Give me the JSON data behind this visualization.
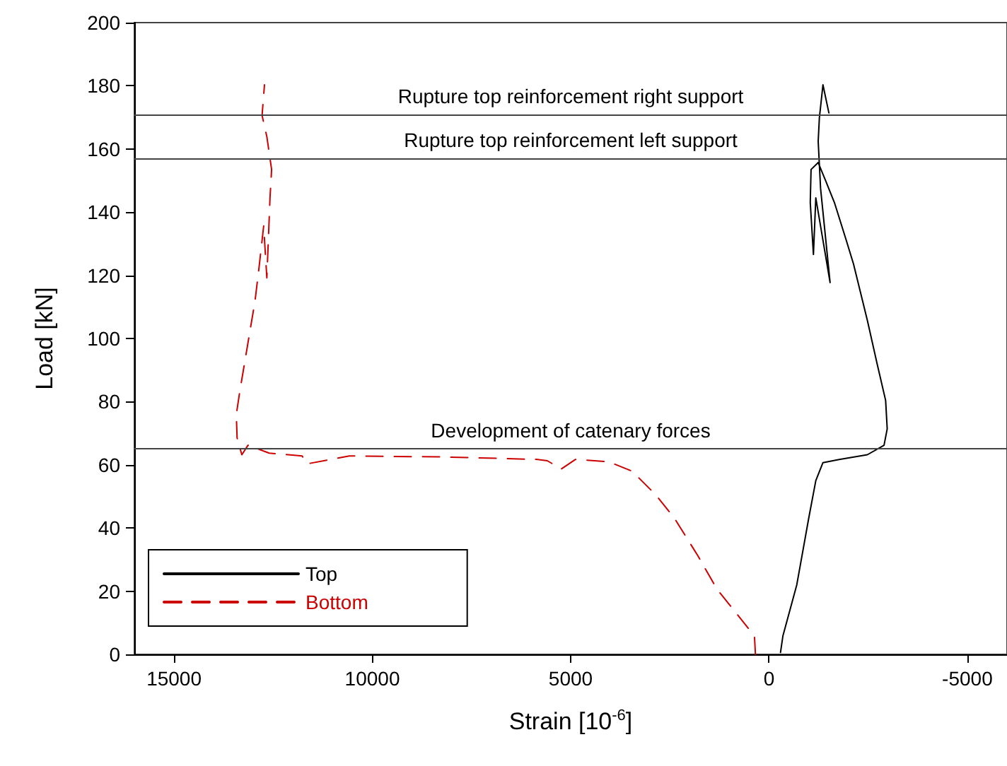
{
  "chart_data": {
    "type": "line",
    "xlabel": "Strain [10$^{-6}$]",
    "ylabel": "Load [kN]",
    "xlim": [
      16000,
      -6000
    ],
    "xticks": [
      15000,
      10000,
      5000,
      0,
      -5000
    ],
    "ylim": [
      0,
      200
    ],
    "yticks": [
      0,
      20,
      40,
      60,
      80,
      100,
      120,
      140,
      160,
      180,
      200
    ],
    "grid": false,
    "legend": "bottom left",
    "marker": "none",
    "series": [
      {
        "name": "Top",
        "color": "#000000",
        "line_style": "solid",
        "x": [
          -290,
          -350,
          -700,
          -1000,
          -1180,
          -1360,
          -1770,
          -2480,
          -2900,
          -2980,
          -2940,
          -2720,
          -2480,
          -2130,
          -1950,
          -1650,
          -1410,
          -1240,
          -1060,
          -1040,
          -1120,
          -1180,
          -1540,
          -1300,
          -1240,
          -1270,
          -1360,
          -1510
        ],
        "values": [
          0.6,
          5.8,
          22,
          43,
          55,
          60.7,
          61.7,
          63.2,
          66.2,
          71.4,
          80.4,
          92.3,
          105.7,
          123.6,
          131,
          143,
          150.5,
          155.7,
          153.5,
          143,
          126.6,
          144.5,
          117.7,
          147.5,
          162.4,
          169.9,
          180.3,
          171.4
        ]
      },
      {
        "name": "Bottom",
        "color": "#cc0000",
        "line_style": "dashed",
        "x": [
          342,
          367,
          841,
          1315,
          1793,
          2384,
          2862,
          3453,
          4048,
          4879,
          5235,
          5590,
          5830,
          8207,
          10580,
          11650,
          11770,
          12600,
          13136,
          13290,
          13410,
          13430,
          13340,
          13200,
          13080,
          12960,
          12860,
          12740,
          12660,
          12580,
          12540,
          12660,
          12780,
          12720
        ],
        "values": [
          0,
          5.8,
          13.3,
          20.7,
          31.2,
          43.1,
          50.6,
          58,
          61,
          61.7,
          58.7,
          61.3,
          61.7,
          62.5,
          62.8,
          60.3,
          62.8,
          63.7,
          66.2,
          63.2,
          68.5,
          75.9,
          83.4,
          93.8,
          102.8,
          111.7,
          122.1,
          135.6,
          119.2,
          144.5,
          153.5,
          163.9,
          170.6,
          180.3
        ]
      }
    ],
    "ref_lines": [
      {
        "axis": "y",
        "value": 171,
        "label": "Rupture top reinforcement right support"
      },
      {
        "axis": "y",
        "value": 157,
        "label": "Rupture top reinforcement left support"
      },
      {
        "axis": "y",
        "value": 65,
        "label": "Development of catenary forces"
      }
    ]
  }
}
